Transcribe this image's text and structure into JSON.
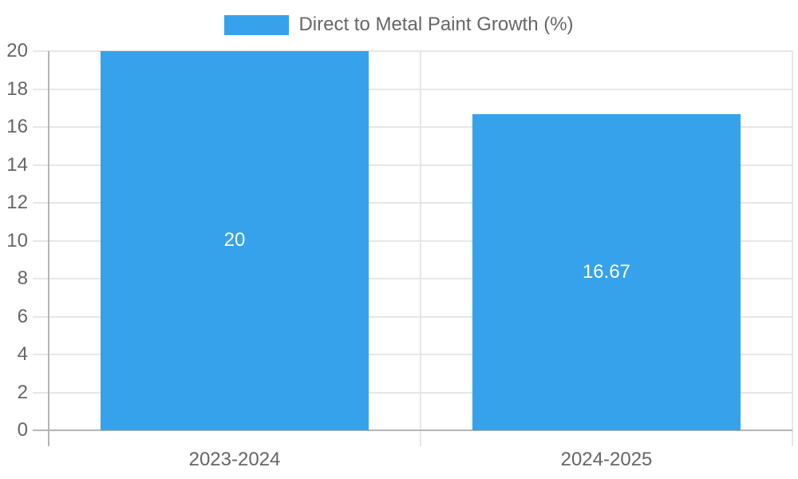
{
  "legend": {
    "label": "Direct to Metal Paint Growth (%)"
  },
  "chart_data": {
    "type": "bar",
    "title": "Direct to Metal Paint Growth (%)",
    "categories": [
      "2023-2024",
      "2024-2025"
    ],
    "series": [
      {
        "name": "Direct to Metal Paint Growth (%)",
        "values": [
          20,
          16.67
        ],
        "value_labels": [
          "20",
          "16.67"
        ]
      }
    ],
    "xlabel": "",
    "ylabel": "",
    "ylim": [
      0,
      20
    ],
    "yticks": [
      0,
      2,
      4,
      6,
      8,
      10,
      12,
      14,
      16,
      18,
      20
    ],
    "grid": true,
    "legend_position": "top"
  },
  "colors": {
    "bar": "#36a2eb",
    "grid_line": "#e6e6e6",
    "axis_line": "#b5b5b5",
    "tick_text": "#666666",
    "legend_text": "#666666",
    "data_label_text": "#ffffff",
    "background": "#ffffff"
  }
}
